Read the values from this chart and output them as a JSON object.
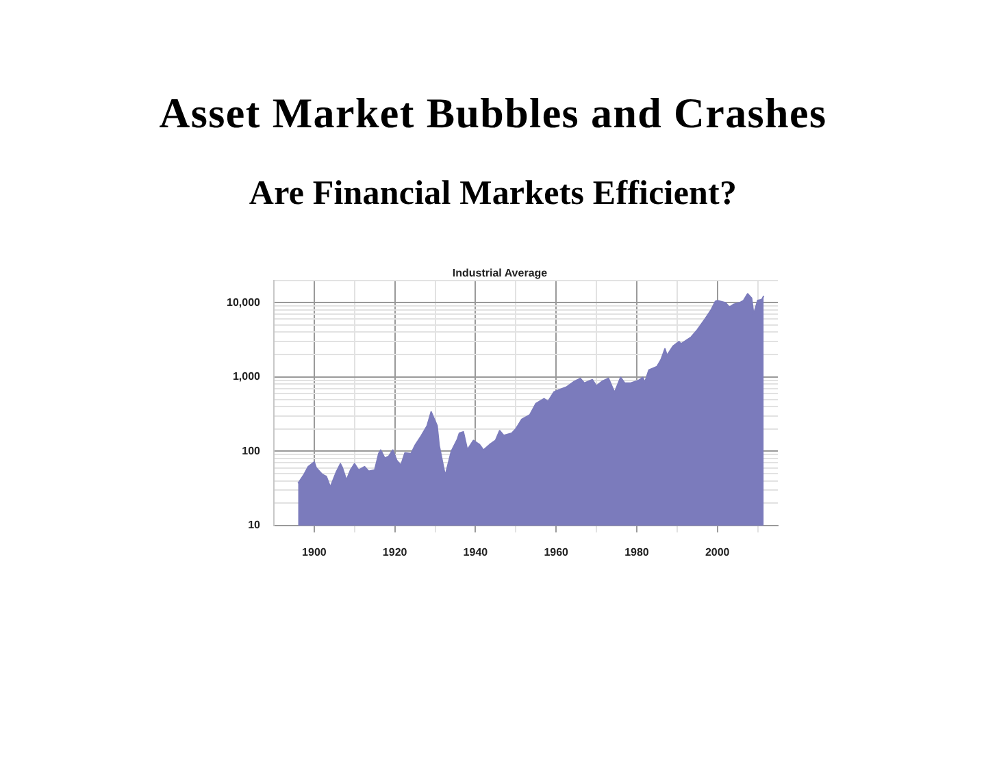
{
  "chart_data": {
    "type": "area",
    "title": "Asset Market Bubbles and Crashes",
    "subtitle": "Are Financial Markets Efficient?",
    "annotations": [
      "Industrial Average"
    ],
    "x": [
      1896,
      1897.5,
      1898.5,
      1900,
      1900.5,
      1902,
      1903,
      1904,
      1905.5,
      1906.5,
      1907,
      1908,
      1909,
      1910,
      1911,
      1912.5,
      1913.5,
      1915,
      1916,
      1916.5,
      1917.5,
      1918.5,
      1919.5,
      1920.5,
      1921.5,
      1922.5,
      1924,
      1925,
      1926.5,
      1928,
      1929,
      1930.5,
      1931,
      1932.5,
      1934,
      1935.5,
      1936,
      1937,
      1938,
      1939.5,
      1941,
      1942,
      1943.5,
      1945,
      1946,
      1947,
      1949,
      1950,
      1951.5,
      1953.5,
      1955,
      1957,
      1958,
      1959.5,
      1961,
      1962.5,
      1964.5,
      1966,
      1967,
      1969,
      1970,
      1971.5,
      1973,
      1974.5,
      1976,
      1977,
      1978.5,
      1980.5,
      1981.5,
      1982,
      1983,
      1985,
      1986,
      1987,
      1987.5,
      1989,
      1990.5,
      1991,
      1993.5,
      1995,
      1997,
      1998.5,
      1999.5,
      2000,
      2002,
      2003,
      2004,
      2005.5,
      2006.5,
      2007.5,
      2008.5,
      2009,
      2010,
      2011,
      2011.5
    ],
    "values": [
      37,
      49,
      62,
      72,
      60,
      49,
      46,
      33,
      53,
      68,
      60,
      41,
      56,
      68,
      56,
      62,
      54,
      56,
      93,
      104,
      81,
      86,
      104,
      75,
      65,
      95,
      93,
      120,
      160,
      220,
      340,
      220,
      120,
      47,
      100,
      145,
      175,
      183,
      105,
      140,
      123,
      104,
      123,
      141,
      190,
      164,
      175,
      200,
      270,
      310,
      440,
      510,
      470,
      630,
      680,
      730,
      870,
      960,
      830,
      920,
      760,
      880,
      960,
      620,
      990,
      830,
      830,
      900,
      990,
      850,
      1240,
      1380,
      1700,
      2400,
      1950,
      2600,
      3000,
      2800,
      3450,
      4300,
      6100,
      8100,
      10400,
      10700,
      10000,
      8700,
      9500,
      10000,
      10700,
      13200,
      11500,
      7000,
      10700,
      11000,
      12300
    ],
    "color": "#7b7bbc",
    "xlim": [
      1890,
      2015
    ],
    "xticks": [
      1900,
      {
        "value": 1910,
        "label": null
      },
      1920,
      {
        "value": 1930,
        "label": null
      },
      1940,
      {
        "value": 1950,
        "label": null
      },
      1960,
      {
        "value": 1970,
        "label": null
      },
      1980,
      {
        "value": 1990,
        "label": null
      },
      2000,
      {
        "value": 2010,
        "label": null
      }
    ],
    "ylim": [
      10,
      20000
    ],
    "yticks": [
      10,
      {
        "value": 20,
        "label": null
      },
      {
        "value": 30,
        "label": null
      },
      {
        "value": 40,
        "label": null
      },
      {
        "value": 50,
        "label": null
      },
      {
        "value": 60,
        "label": null
      },
      {
        "value": 70,
        "label": null
      },
      {
        "value": 80,
        "label": null
      },
      {
        "value": 90,
        "label": null
      },
      100,
      {
        "value": 200,
        "label": null
      },
      {
        "value": 300,
        "label": null
      },
      {
        "value": 400,
        "label": null
      },
      {
        "value": 500,
        "label": null
      },
      {
        "value": 600,
        "label": null
      },
      {
        "value": 700,
        "label": null
      },
      {
        "value": 800,
        "label": null
      },
      {
        "value": 900,
        "label": null
      },
      {
        "value": 1000,
        "label": "1,000"
      },
      {
        "value": 2000,
        "label": null
      },
      {
        "value": 3000,
        "label": null
      },
      {
        "value": 4000,
        "label": null
      },
      {
        "value": 5000,
        "label": null
      },
      {
        "value": 6000,
        "label": null
      },
      {
        "value": 7000,
        "label": null
      },
      {
        "value": 8000,
        "label": null
      },
      {
        "value": 9000,
        "label": null
      },
      {
        "value": 10000,
        "label": "10,000"
      },
      {
        "value": 20000,
        "label": null
      }
    ],
    "log": "y",
    "grid": true
  }
}
